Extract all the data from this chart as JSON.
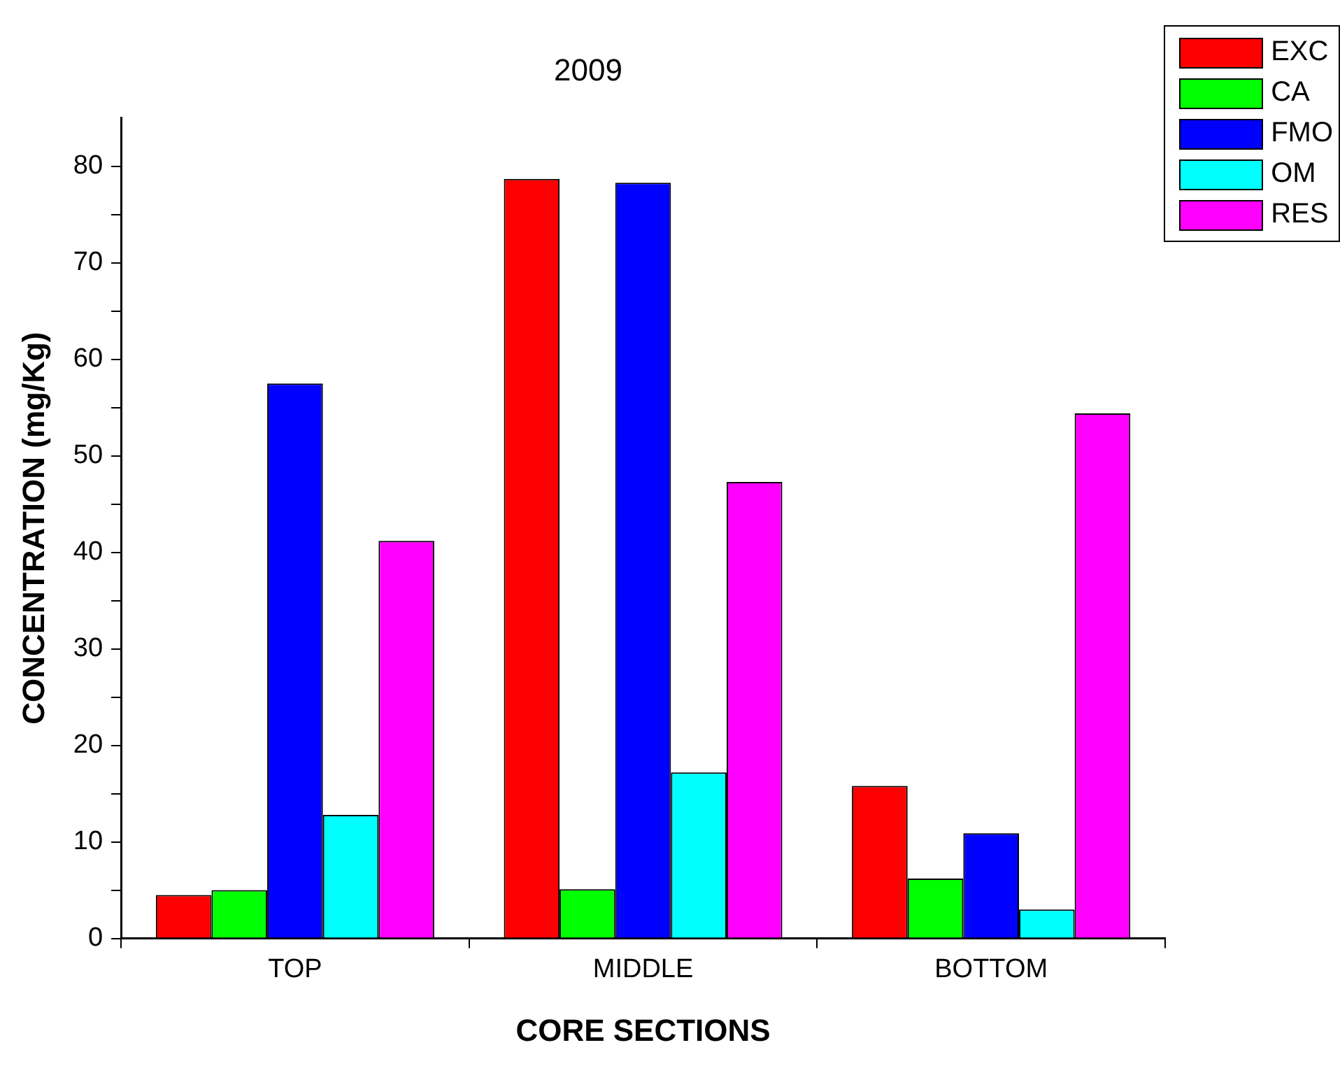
{
  "chart_data": {
    "type": "bar",
    "title": "2009",
    "xlabel": "CORE SECTIONS",
    "ylabel": "CONCENTRATION (mg/Kg)",
    "categories": [
      "TOP",
      "MIDDLE",
      "BOTTOM"
    ],
    "series": [
      {
        "name": "EXC",
        "color": "#ff0000",
        "values": [
          4.5,
          78.7,
          15.8
        ]
      },
      {
        "name": "CA",
        "color": "#00ff00",
        "values": [
          5.0,
          5.1,
          6.2
        ]
      },
      {
        "name": "FMO",
        "color": "#0000ff",
        "values": [
          57.5,
          78.3,
          10.9
        ]
      },
      {
        "name": "OM",
        "color": "#00ffff",
        "values": [
          12.8,
          17.2,
          3.0
        ]
      },
      {
        "name": "RES",
        "color": "#ff00ff",
        "values": [
          41.2,
          47.3,
          54.4
        ]
      }
    ],
    "ylim": [
      0,
      85
    ],
    "yticks": [
      0,
      {
        "value": 5,
        "label": null
      },
      10,
      {
        "value": 15,
        "label": null
      },
      20,
      {
        "value": 25,
        "label": null
      },
      30,
      {
        "value": 35,
        "label": null
      },
      40,
      {
        "value": 45,
        "label": null
      },
      50,
      {
        "value": 55,
        "label": null
      },
      60,
      {
        "value": 65,
        "label": null
      },
      70,
      {
        "value": 75,
        "label": null
      },
      80
    ],
    "grid": false,
    "legend": "top right"
  }
}
